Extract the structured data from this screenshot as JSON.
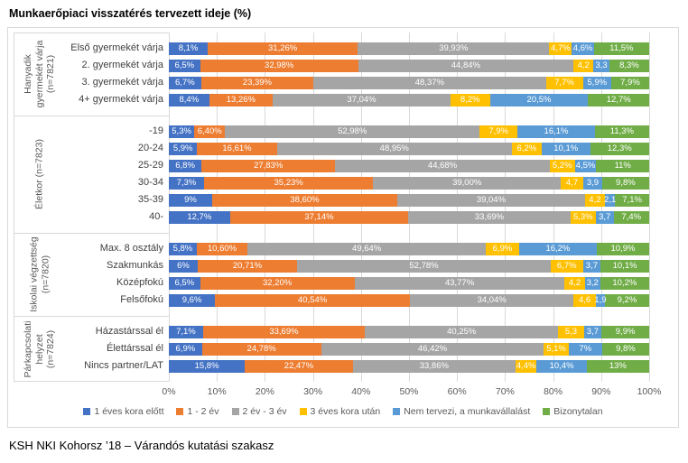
{
  "footer": "KSH NKI Kohorsz ’18 – Várandós kutatási szakasz",
  "chart_data": {
    "type": "bar",
    "stacked": true,
    "orientation": "horizontal",
    "title": "Munkaerőpiaci visszatérés tervezett ideje (%)",
    "xlabel": "",
    "ylabel": "",
    "xlim": [
      0,
      100
    ],
    "x_ticks": [
      "0%",
      "10%",
      "20%",
      "30%",
      "40%",
      "50%",
      "60%",
      "70%",
      "80%",
      "90%",
      "100%"
    ],
    "grid": true,
    "legend_position": "bottom",
    "series_names": [
      "1 éves kora előtt",
      "1 - 2 év",
      "2 év - 3 év",
      "3 éves kora után",
      "Nem tervezi, a munkavállalást",
      "Bizonytalan"
    ],
    "series_colors": [
      "#4472C4",
      "#ED7D31",
      "#A5A5A5",
      "#FFC000",
      "#5B9BD5",
      "#70AD47"
    ],
    "groups": [
      {
        "label": "Hanyadik gyermekét várja (n=7821)",
        "rows": [
          {
            "label": "Első gyermekét várja",
            "values": [
              8.1,
              31.26,
              39.93,
              4.7,
              4.6,
              11.5
            ],
            "labels": [
              "8,1%",
              "31,26%",
              "39,93%",
              "4,7%",
              "4,6%",
              "11,5%"
            ]
          },
          {
            "label": "2. gyermekét várja",
            "values": [
              6.5,
              32.98,
              44.84,
              4.2,
              3.3,
              8.3
            ],
            "labels": [
              "6,5%",
              "32,98%",
              "44,84%",
              "4,2",
              "3,3",
              "8,3%"
            ]
          },
          {
            "label": "3. gyermekét várja",
            "values": [
              6.7,
              23.39,
              48.37,
              7.7,
              5.9,
              7.9
            ],
            "labels": [
              "6,7%",
              "23,39%",
              "48,37%",
              "7,7%",
              "5,9%",
              "7,9%"
            ]
          },
          {
            "label": "4+ gyermekét várja",
            "values": [
              8.4,
              13.26,
              37.04,
              8.2,
              20.5,
              12.7
            ],
            "labels": [
              "8,4%",
              "13,26%",
              "37,04%",
              "8,2%",
              "20,5%",
              "12,7%"
            ]
          }
        ]
      },
      {
        "label": "Életkor (n=7823)",
        "rows": [
          {
            "label": "-19",
            "values": [
              5.3,
              6.4,
              52.98,
              7.9,
              16.1,
              11.3
            ],
            "labels": [
              "5,3%",
              "6,40%",
              "52,98%",
              "7,9%",
              "16,1%",
              "11,3%"
            ]
          },
          {
            "label": "20-24",
            "values": [
              5.9,
              16.61,
              48.95,
              6.2,
              10.1,
              12.3
            ],
            "labels": [
              "5,9%",
              "16,61%",
              "48,95%",
              "6,2%",
              "10,1%",
              "12,3%"
            ]
          },
          {
            "label": "25-29",
            "values": [
              6.8,
              27.83,
              44.68,
              5.2,
              4.5,
              11.0
            ],
            "labels": [
              "6,8%",
              "27,83%",
              "44,68%",
              "5,2%",
              "4,5%",
              "11%"
            ]
          },
          {
            "label": "30-34",
            "values": [
              7.3,
              35.23,
              39.0,
              4.7,
              3.9,
              9.8
            ],
            "labels": [
              "7,3%",
              "35,23%",
              "39,00%",
              "4,7",
              "3,9",
              "9,8%"
            ]
          },
          {
            "label": "35-39",
            "values": [
              9.0,
              38.6,
              39.04,
              4.2,
              2.1,
              7.1
            ],
            "labels": [
              "9%",
              "38,60%",
              "39,04%",
              "4,2",
              "2,1",
              "7,1%"
            ]
          },
          {
            "label": "40-",
            "values": [
              12.7,
              37.14,
              33.69,
              5.3,
              3.7,
              7.4
            ],
            "labels": [
              "12,7%",
              "37,14%",
              "33,69%",
              "5,3%",
              "3,7",
              "7,4%"
            ]
          }
        ]
      },
      {
        "label": "Iskolai végzettség (n=7820)",
        "rows": [
          {
            "label": "Max. 8 osztály",
            "values": [
              5.8,
              10.6,
              49.64,
              6.9,
              16.2,
              10.9
            ],
            "labels": [
              "5,8%",
              "10,60%",
              "49,64%",
              "6,9%",
              "16,2%",
              "10,9%"
            ]
          },
          {
            "label": "Szakmunkás",
            "values": [
              6.0,
              20.71,
              52.78,
              6.7,
              3.7,
              10.1
            ],
            "labels": [
              "6%",
              "20,71%",
              "52,78%",
              "6,7%",
              "3,7",
              "10,1%"
            ]
          },
          {
            "label": "Középfokú",
            "values": [
              6.5,
              32.2,
              43.77,
              4.2,
              3.2,
              10.2
            ],
            "labels": [
              "6,5%",
              "32,20%",
              "43,77%",
              "4,2",
              "3,2",
              "10,2%"
            ]
          },
          {
            "label": "Felsőfokú",
            "values": [
              9.6,
              40.54,
              34.04,
              4.6,
              1.9,
              9.2
            ],
            "labels": [
              "9,6%",
              "40,54%",
              "34,04%",
              "4,6",
              "1,9",
              "9,2%"
            ]
          }
        ]
      },
      {
        "label": "Párkapcsolati helyzet (n=7824)",
        "rows": [
          {
            "label": "Házastárssal él",
            "values": [
              7.1,
              33.69,
              40.25,
              5.3,
              3.7,
              9.9
            ],
            "labels": [
              "7,1%",
              "33,69%",
              "40,25%",
              "5,3",
              "3,7",
              "9,9%"
            ]
          },
          {
            "label": "Élettárssal él",
            "values": [
              6.9,
              24.78,
              46.42,
              5.1,
              7.0,
              9.8
            ],
            "labels": [
              "6,9%",
              "24,78%",
              "46,42%",
              "5,1%",
              "7%",
              "9,8%"
            ]
          },
          {
            "label": "Nincs partner/LAT",
            "values": [
              15.8,
              22.47,
              33.86,
              4.4,
              10.4,
              13.0
            ],
            "labels": [
              "15,8%",
              "22,47%",
              "33,86%",
              "4,4%",
              "10,4%",
              "13%"
            ]
          }
        ]
      }
    ]
  }
}
